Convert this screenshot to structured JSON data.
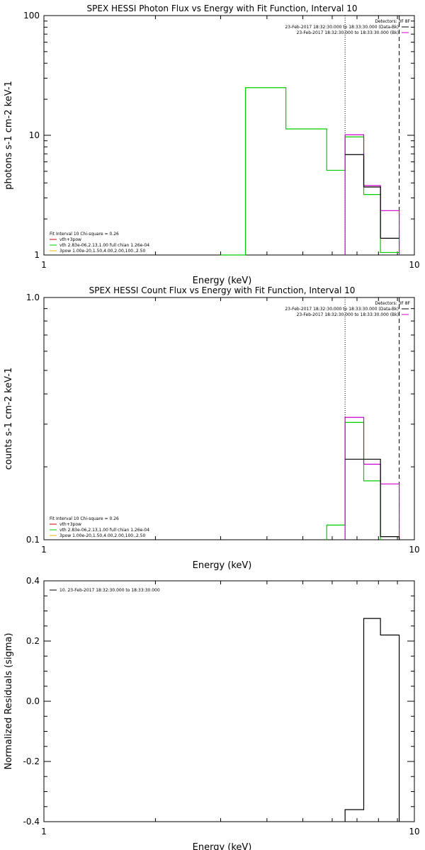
{
  "chart_data": [
    {
      "type": "line",
      "title": "SPEX HESSI Photon Flux vs Energy with Fit Function, Interval 10",
      "xlabel": "Energy (keV)",
      "ylabel": "photons s-1 cm-2 keV-1",
      "xscale": "log",
      "yscale": "log",
      "xlim": [
        1,
        10
      ],
      "ylim": [
        1,
        100
      ],
      "xticks": [
        "1",
        "10"
      ],
      "yticks": [
        "1",
        "10",
        "100"
      ],
      "legend_right": {
        "header": "Detectors: 3F 8F",
        "lines": [
          {
            "text": "23-Feb-2017 18:32:30.000 to 18:33:30.000 (Data-Bk)",
            "color": "#000000"
          },
          {
            "text": "23-Feb-2017 18:32:30.000 to 18:33:30.000 (Bk)",
            "color": "#cc00cc"
          }
        ]
      },
      "legend_left": {
        "header": "Fit Interval 10   Chi-square = 0.26",
        "lines": [
          {
            "text": "vth+3pow",
            "color": "#cc0000"
          },
          {
            "text": "vth 2.83e-06,2.13,1.00   full chian 1.26e-04",
            "color": "#00cc00"
          },
          {
            "text": "3pow 1.00e-20,1.50,4.00,2.00,100.,2.50",
            "color": "#e6b800"
          }
        ]
      },
      "vlines": [
        {
          "x": 6.5,
          "style": "dotted"
        },
        {
          "x": 9.1,
          "style": "dashed"
        }
      ],
      "series": [
        {
          "color": "#00cc00",
          "edges": [
            3,
            3.5,
            4.5,
            5.8,
            6.5,
            7.3,
            8.1,
            9.1
          ],
          "values": [
            1,
            25,
            11.3,
            5.1,
            9.7,
            3.2,
            1.05
          ],
          "start_floor": 1
        },
        {
          "color": "#cc00cc",
          "edges": [
            6.5,
            7.3,
            8.1,
            9.1
          ],
          "values": [
            10.1,
            3.8,
            2.35
          ],
          "start_floor": 1,
          "end_floor": 1
        },
        {
          "color": "#000000",
          "edges": [
            6.5,
            7.3,
            8.1,
            9.1
          ],
          "values": [
            6.9,
            3.7,
            1.38
          ]
        }
      ]
    },
    {
      "type": "line",
      "title": "SPEX HESSI Count Flux vs Energy with Fit Function, Interval 10",
      "xlabel": "Energy (keV)",
      "ylabel": "counts s-1 cm-2 keV-1",
      "xscale": "log",
      "yscale": "log",
      "xlim": [
        1,
        10
      ],
      "ylim": [
        0.1,
        1.0
      ],
      "xticks": [
        "1",
        "10"
      ],
      "yticks": [
        "0.1",
        "1.0"
      ],
      "legend_right": {
        "header": "Detectors: 3F 8F",
        "lines": [
          {
            "text": "23-Feb-2017 18:32:30.000 to 18:33:30.000 (Data-Bk)",
            "color": "#000000"
          },
          {
            "text": "23-Feb-2017 18:32:30.000 to 18:33:30.000 (Bk)",
            "color": "#cc00cc"
          }
        ]
      },
      "legend_left": {
        "header": "Fit Interval 10   Chi-square = 0.26",
        "lines": [
          {
            "text": "vth+3pow",
            "color": "#cc0000"
          },
          {
            "text": "vth 2.83e-06,2.13,1.00   full chian 1.26e-04",
            "color": "#00cc00"
          },
          {
            "text": "3pow 1.00e-20,1.50,4.00,2.00,100.,2.50",
            "color": "#e6b800"
          }
        ]
      },
      "vlines": [
        {
          "x": 6.5,
          "style": "dotted"
        },
        {
          "x": 9.1,
          "style": "dashed"
        }
      ],
      "series": [
        {
          "color": "#00cc00",
          "edges": [
            5.8,
            6.5,
            7.3,
            8.1
          ],
          "values": [
            0.115,
            0.305,
            0.175
          ],
          "start_floor": 0.1,
          "end_floor": 0.1
        },
        {
          "color": "#cc00cc",
          "edges": [
            6.5,
            7.3,
            8.1,
            9.1
          ],
          "values": [
            0.32,
            0.205,
            0.17
          ],
          "start_floor": 0.1,
          "end_floor": 0.1
        },
        {
          "color": "#000000",
          "edges": [
            6.5,
            7.3,
            8.1,
            9.1
          ],
          "values": [
            0.215,
            0.215,
            0.103
          ],
          "end_floor": 0.1
        }
      ]
    },
    {
      "type": "line",
      "title": "",
      "xlabel": "Energy (keV)",
      "ylabel": "Normalized Residuals (sigma)",
      "xscale": "log",
      "yscale": "linear",
      "xlim": [
        1,
        10
      ],
      "ylim": [
        -0.4,
        0.4
      ],
      "xticks": [
        "1",
        "10"
      ],
      "yticks": [
        "0.4",
        "0.2",
        "0.0",
        "-0.2",
        "-0.4"
      ],
      "legend_right": null,
      "legend_left": {
        "header": "",
        "lines": [
          {
            "text": "10. 23-Feb-2017 18:32:30.000 to 18:33:30.000",
            "color": "#000000"
          }
        ]
      },
      "vlines": [],
      "series": [
        {
          "color": "#000000",
          "edges": [
            6.5,
            7.3,
            8.1,
            9.1
          ],
          "values": [
            -0.36,
            0.275,
            0.22
          ],
          "start_floor": -0.4,
          "end_floor": -0.4
        }
      ]
    }
  ]
}
